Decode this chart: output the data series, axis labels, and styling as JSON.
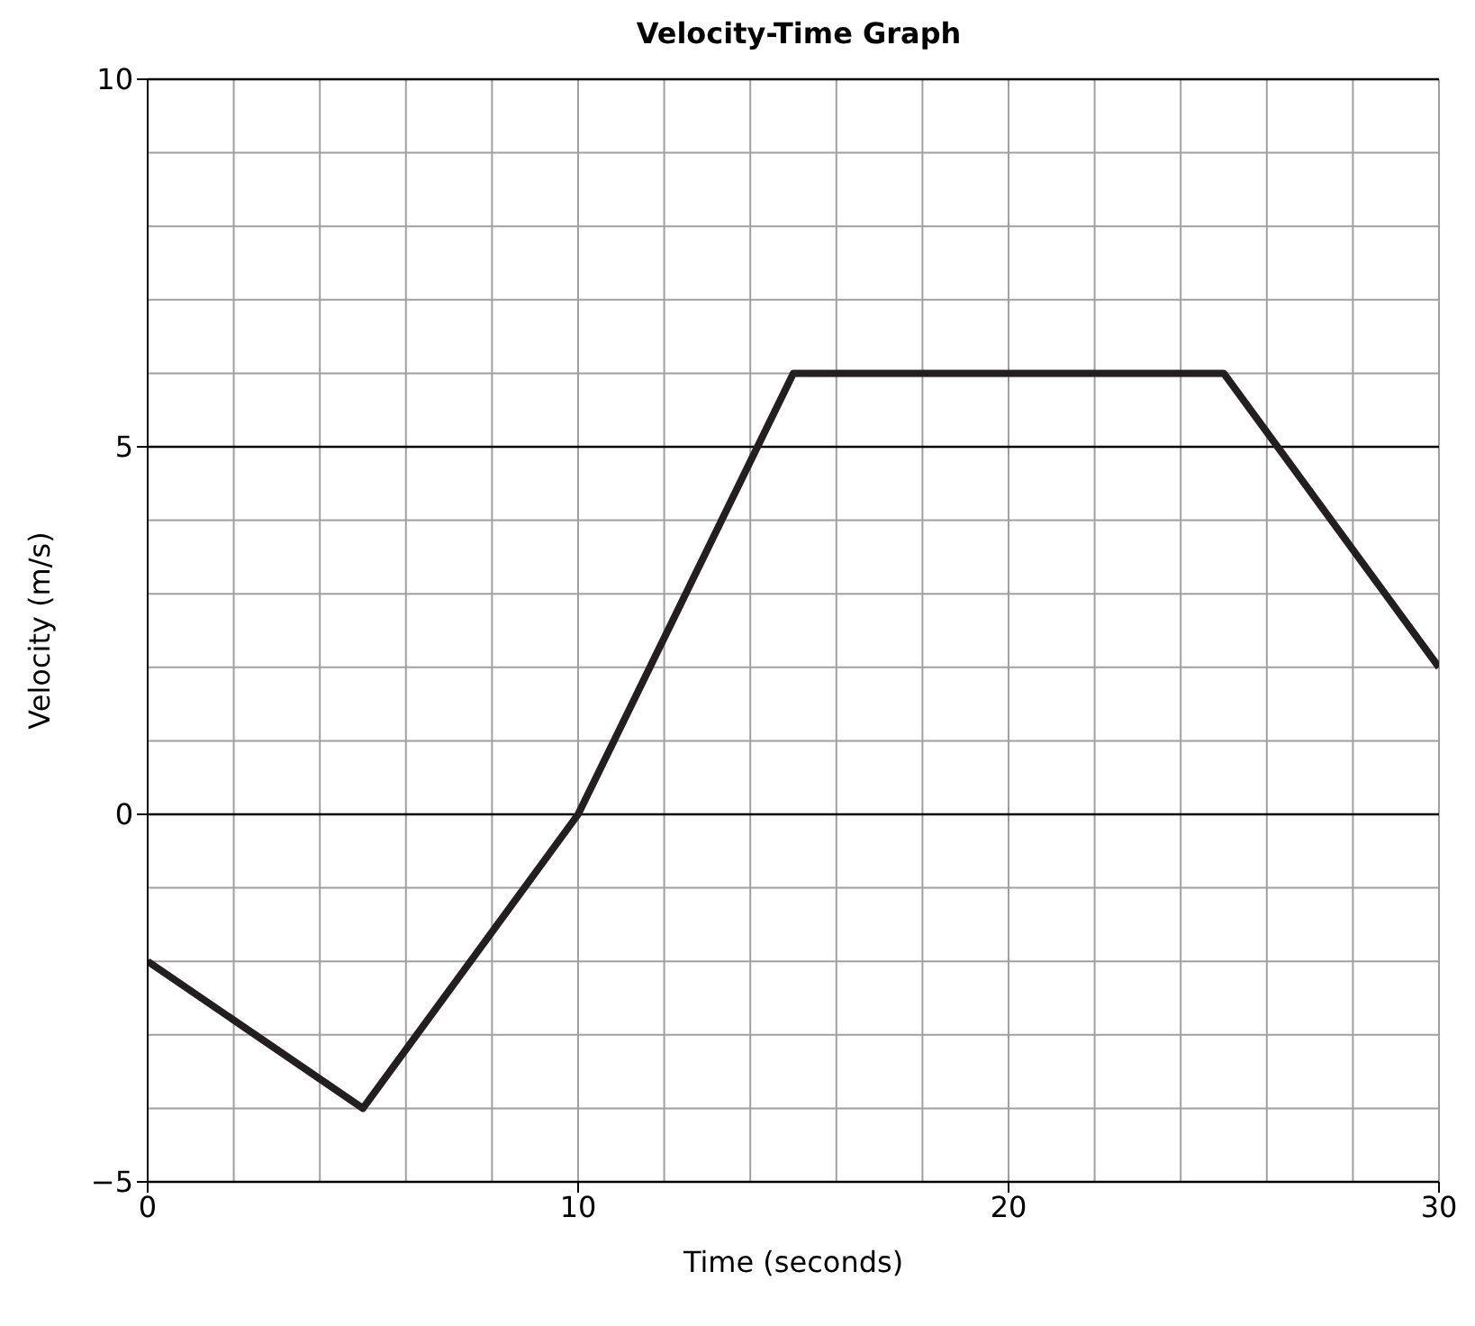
{
  "chart_data": {
    "type": "line",
    "title": "Velocity-Time Graph",
    "xlabel": "Time (seconds)",
    "ylabel": "Velocity (m/s)",
    "x": [
      0,
      5,
      10,
      15,
      25,
      30
    ],
    "series": [
      {
        "color": "#231f20",
        "values": [
          -2,
          -4,
          0,
          6,
          6,
          2
        ]
      }
    ],
    "xlim": [
      0,
      30
    ],
    "xticks": [
      0,
      10,
      20,
      30
    ],
    "ylim": [
      -5,
      10
    ],
    "yticks": [
      {
        "value": -5,
        "label": "−5"
      },
      0,
      5,
      10
    ],
    "grid": true,
    "marker": "none",
    "line_style": "solid"
  }
}
